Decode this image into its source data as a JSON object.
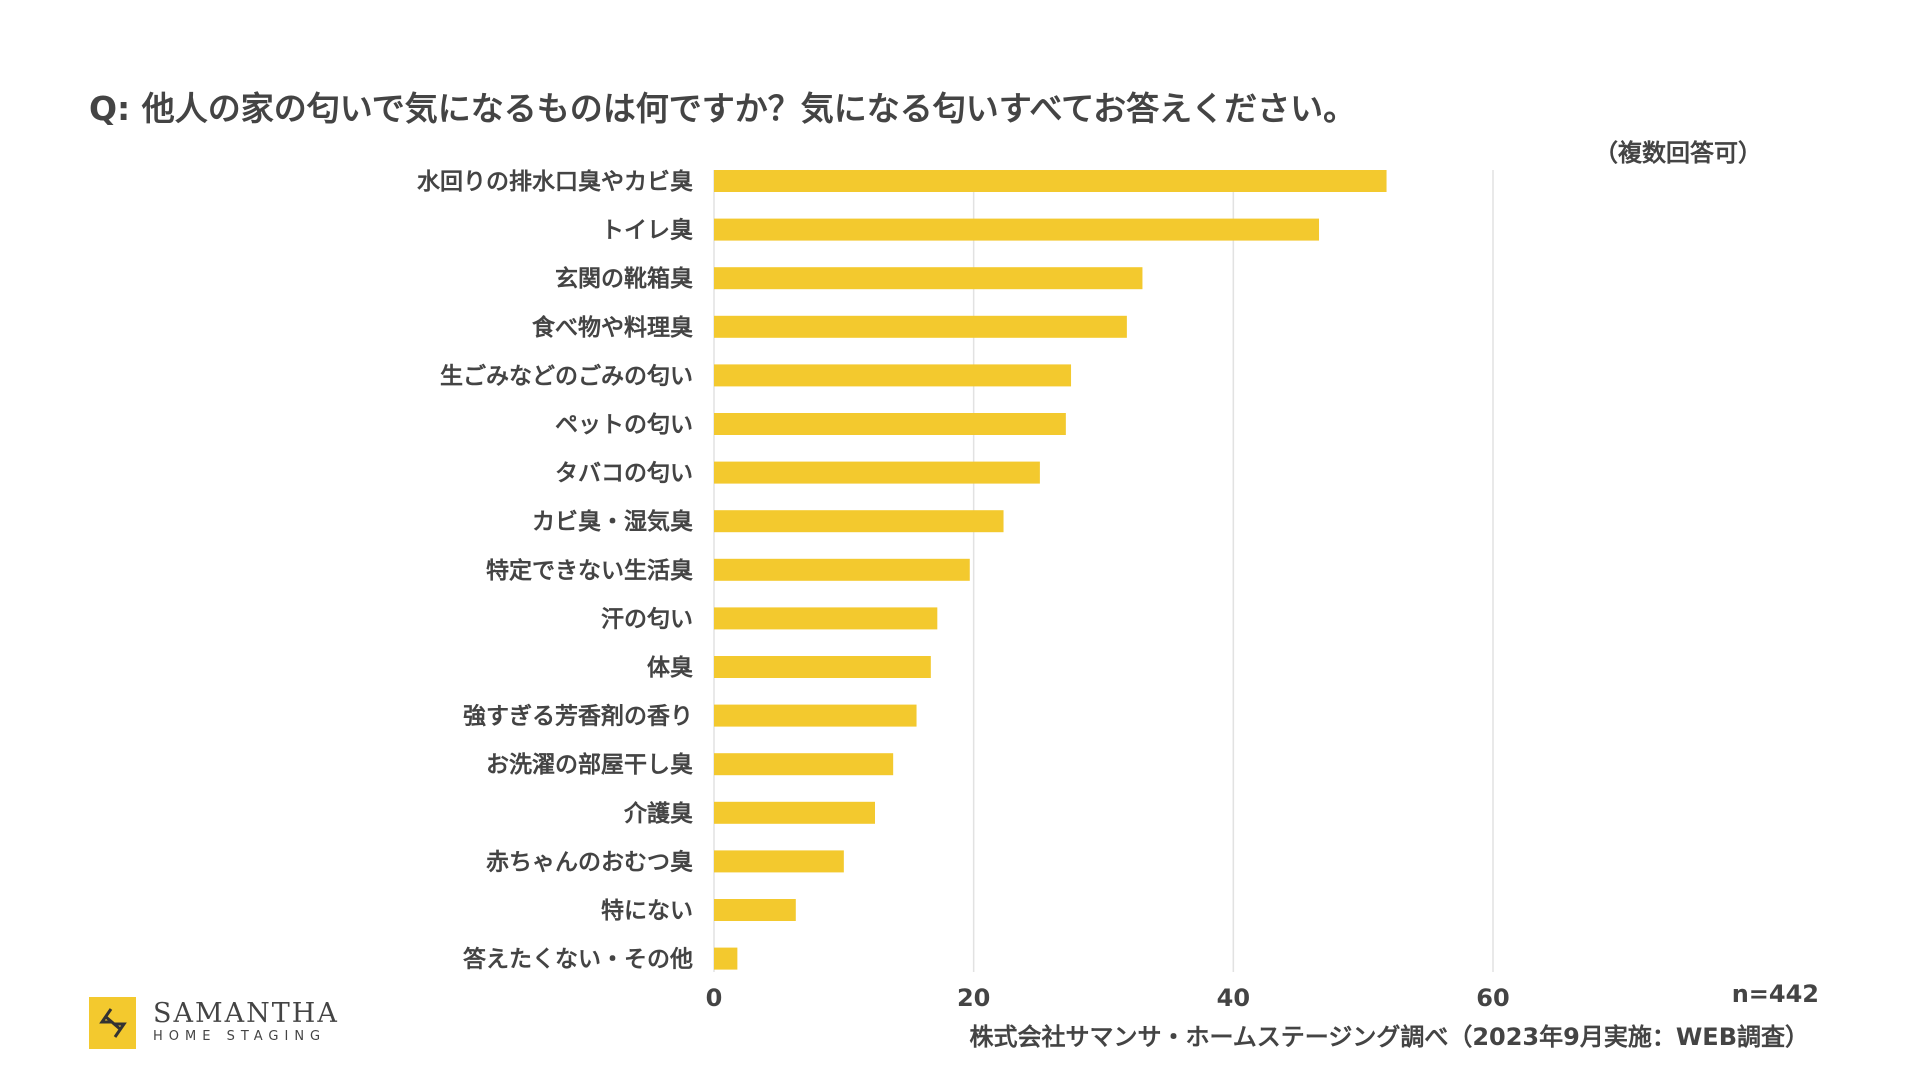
{
  "chart_data": {
    "type": "bar",
    "orientation": "horizontal",
    "title": "Q: 他人の家の匂いで気になるものは何ですか？気になる匂いすべてお答えください。",
    "subtitle": "（複数回答可）",
    "categories": [
      "水回りの排水口臭やカビ臭",
      "トイレ臭",
      "玄関の靴箱臭",
      "食べ物や料理臭",
      "生ごみなどのごみの匂い",
      "ペットの匂い",
      "タバコの匂い",
      "カビ臭・湿気臭",
      "特定できない生活臭",
      "汗の匂い",
      "体臭",
      "強すぎる芳香剤の香り",
      "お洗濯の部屋干し臭",
      "介護臭",
      "赤ちゃんのおむつ臭",
      "特にない",
      "答えたくない・その他"
    ],
    "values": [
      51.8,
      46.6,
      33.0,
      31.8,
      27.5,
      27.1,
      25.1,
      22.3,
      19.7,
      17.2,
      16.7,
      15.6,
      13.8,
      12.4,
      10.0,
      6.3,
      1.8
    ],
    "xlim": [
      0,
      60
    ],
    "xticks": [
      "0",
      "20",
      "40",
      "60"
    ],
    "grid": true,
    "bar_color": "#F3C92E",
    "sample_size": "n=442",
    "source": "株式会社サマンサ・ホームステージング調べ（2023年9月実施：WEB調査）"
  },
  "logo": {
    "main": "SAMANTHA",
    "sub": "HOME STAGING"
  }
}
